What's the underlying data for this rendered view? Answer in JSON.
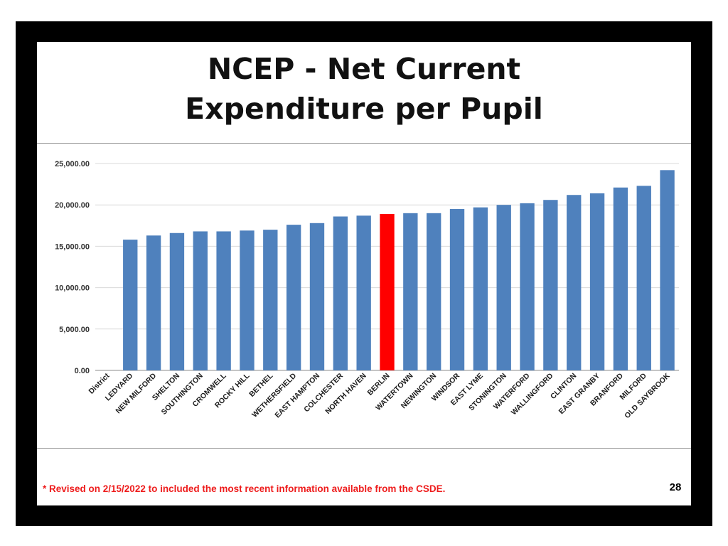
{
  "slide": {
    "title_line1": "NCEP - Net Current",
    "title_line2": "Expenditure per Pupil",
    "footnote": "* Revised on 2/15/2022  to included the most recent information available from the CSDE.",
    "page_number": "28"
  },
  "colors": {
    "frame": "#000000",
    "bar": "#4f81bd",
    "highlight_bar": "#ff0000",
    "footnote": "#ee1c1c"
  },
  "chart_data": {
    "type": "bar",
    "title": "",
    "xlabel": "",
    "ylabel": "",
    "ylim": [
      0,
      25000
    ],
    "yticks": [
      0,
      5000,
      10000,
      15000,
      20000,
      25000
    ],
    "ytick_labels": [
      "0.00",
      "5,000.00",
      "10,000.00",
      "15,000.00",
      "20,000.00",
      "25,000.00"
    ],
    "grid": true,
    "categories": [
      "District",
      "LEDYARD",
      "NEW MILFORD",
      "SHELTON",
      "SOUTHINGTON",
      "CROMWELL",
      "ROCKY HILL",
      "BETHEL",
      "WETHERSFIELD",
      "EAST HAMPTON",
      "COLCHESTER",
      "NORTH HAVEN",
      "BERLIN",
      "WATERTOWN",
      "NEWINGTON",
      "WINDSOR",
      "EAST LYME",
      "STONINGTON",
      "WATERFORD",
      "WALLINGFORD",
      "CLINTON",
      "EAST GRANBY",
      "BRANFORD",
      "MILFORD",
      "OLD SAYBROOK"
    ],
    "values": [
      null,
      15800,
      16300,
      16600,
      16800,
      16800,
      16900,
      17000,
      17600,
      17800,
      18600,
      18700,
      18900,
      19000,
      19000,
      19500,
      19700,
      20000,
      20200,
      20600,
      21200,
      21400,
      22100,
      22300,
      24200
    ],
    "highlight": "BERLIN"
  }
}
